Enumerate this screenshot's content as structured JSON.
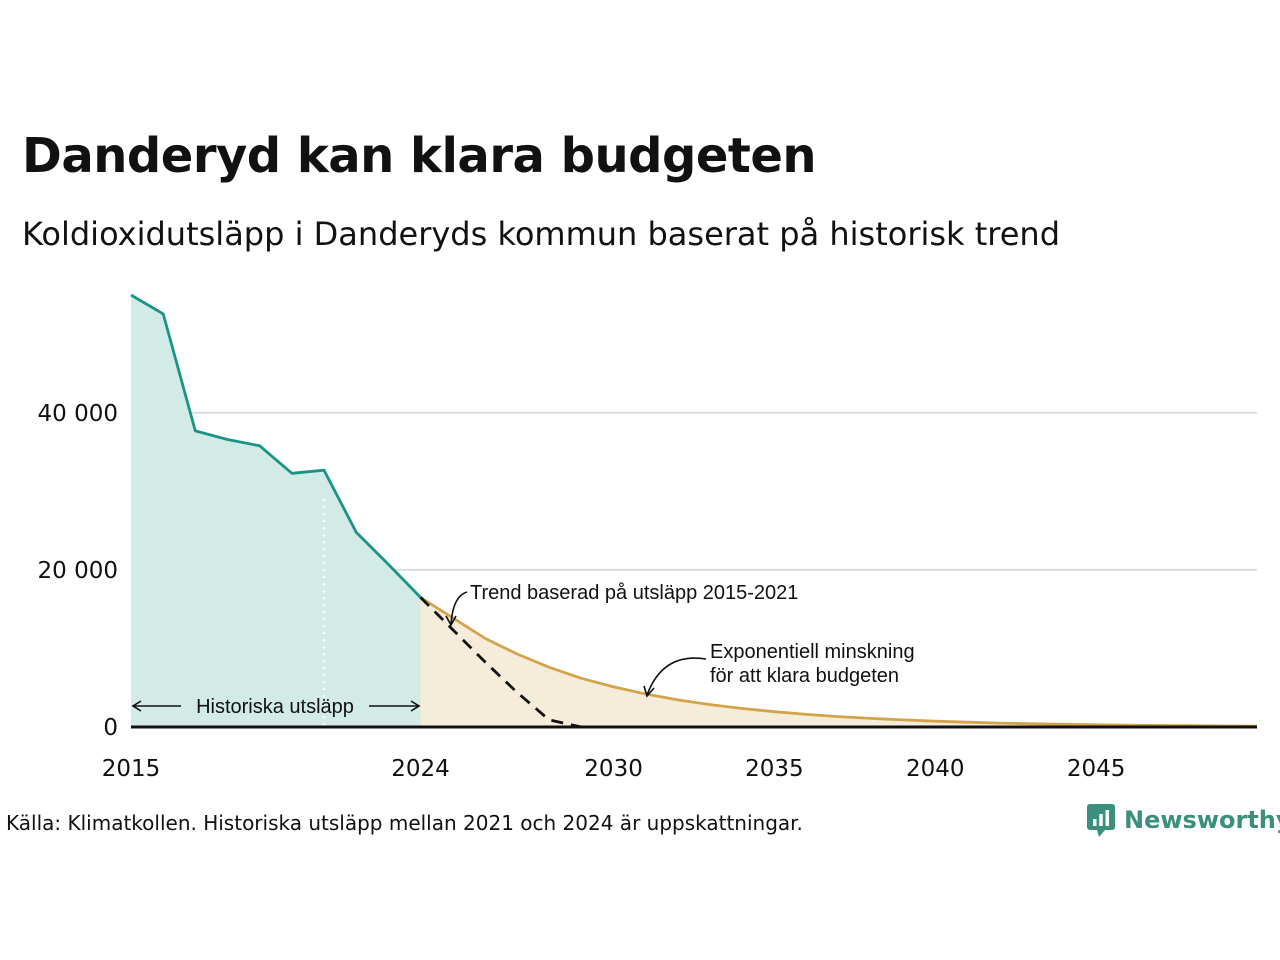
{
  "header": {
    "title": "Danderyd kan klara budgeten",
    "subtitle": "Koldioxidutsläpp i Danderyds kommun baserat på historisk trend"
  },
  "footer": {
    "source": "Källa: Klimatkollen. Historiska utsläpp mellan 2021 och 2024 är uppskattningar.",
    "brand": "Newsworthy"
  },
  "colors": {
    "historical_line": "#1a9484",
    "historical_fill": "#d2ebe6",
    "trend_line": "#d3a44c",
    "trend_fill": "#f5ecda",
    "budget_line": "#111111",
    "grid": "#dcdcdc",
    "brand": "#3a8f7d"
  },
  "chart_data": {
    "type": "area",
    "xlim": [
      2015,
      2050
    ],
    "ylim": [
      0,
      55000
    ],
    "x_ticks": [
      2015,
      2024,
      2030,
      2035,
      2040,
      2045
    ],
    "x_tick_labels": [
      "2015",
      "2024",
      "2030",
      "2035",
      "2040",
      "2045"
    ],
    "y_ticks": [
      0,
      20000,
      40000
    ],
    "y_tick_labels": [
      "0",
      "20 000",
      "40 000"
    ],
    "grid": "horizontal",
    "series": [
      {
        "key": "historical",
        "x": [
          2015,
          2016,
          2017,
          2018,
          2019,
          2020,
          2021,
          2022,
          2023,
          2024
        ],
        "y": [
          55000,
          52600,
          37700,
          36600,
          35800,
          32300,
          32700,
          24800,
          20700,
          16500
        ]
      },
      {
        "key": "trend",
        "x": [
          2024,
          2025,
          2026,
          2027,
          2028,
          2029,
          2030,
          2031,
          2032,
          2033,
          2034,
          2035,
          2036,
          2037,
          2038,
          2039,
          2040,
          2041,
          2042,
          2043,
          2044,
          2045,
          2046,
          2047,
          2048,
          2049,
          2050
        ],
        "y": [
          16500,
          13900,
          11300,
          9300,
          7600,
          6200,
          5100,
          4200,
          3450,
          2850,
          2350,
          1950,
          1600,
          1330,
          1100,
          900,
          740,
          610,
          500,
          410,
          340,
          280,
          230,
          190,
          160,
          130,
          110
        ]
      },
      {
        "key": "budget",
        "x": [
          2024,
          2025,
          2026,
          2027,
          2028,
          2029,
          2030,
          2050
        ],
        "y": [
          16500,
          12400,
          8300,
          4400,
          900,
          0,
          0,
          0
        ]
      }
    ],
    "annotations": {
      "historical": "Historiska utsläpp",
      "trend": "Trend baserad på utsläpp 2015-2021",
      "budget_line1": "Exponentiell minskning",
      "budget_line2": "för att klara budgeten"
    }
  }
}
